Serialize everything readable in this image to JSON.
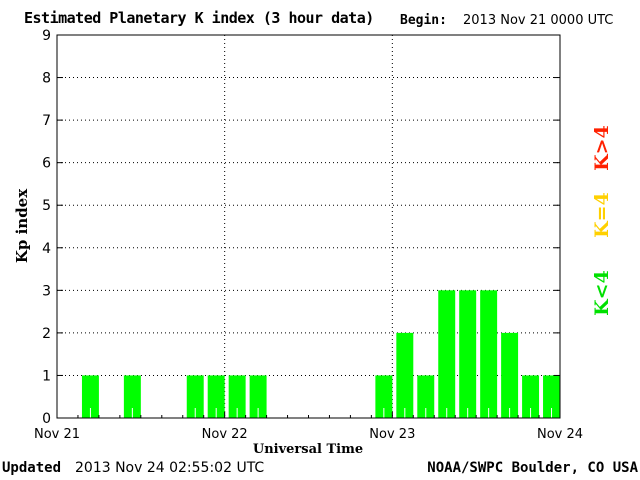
{
  "header": {
    "title": "Estimated Planetary K index (3 hour data)",
    "begin_label": "Begin:",
    "begin_value": "2013 Nov 21 0000 UTC"
  },
  "footer": {
    "updated_label": "Updated",
    "updated_value": "2013 Nov 24 02:55:02 UTC",
    "credit": "NOAA/SWPC Boulder, CO USA"
  },
  "legend": [
    {
      "label": "K>4",
      "color": "#ff2000"
    },
    {
      "label": "K=4",
      "color": "#ffd000"
    },
    {
      "label": "K<4",
      "color": "#00e000"
    }
  ],
  "chart_data": {
    "type": "bar",
    "title": "Estimated Planetary K index (3 hour data)",
    "xlabel": "Universal Time",
    "ylabel": "Kp index",
    "ylim": [
      0,
      9
    ],
    "yticks": [
      "0",
      "1",
      "2",
      "3",
      "4",
      "5",
      "6",
      "7",
      "8",
      "9"
    ],
    "xticks": [
      "Nov 21",
      "Nov 22",
      "Nov 23",
      "Nov 24"
    ],
    "grid": true,
    "bar_color": "#00ff00",
    "slots_per_day": 8,
    "series": [
      {
        "values": [
          0,
          1,
          0,
          1,
          0,
          0,
          1,
          1,
          1,
          1,
          0,
          0,
          0,
          0,
          0,
          1,
          2,
          1,
          3,
          3,
          3,
          2,
          1,
          1
        ]
      }
    ]
  }
}
